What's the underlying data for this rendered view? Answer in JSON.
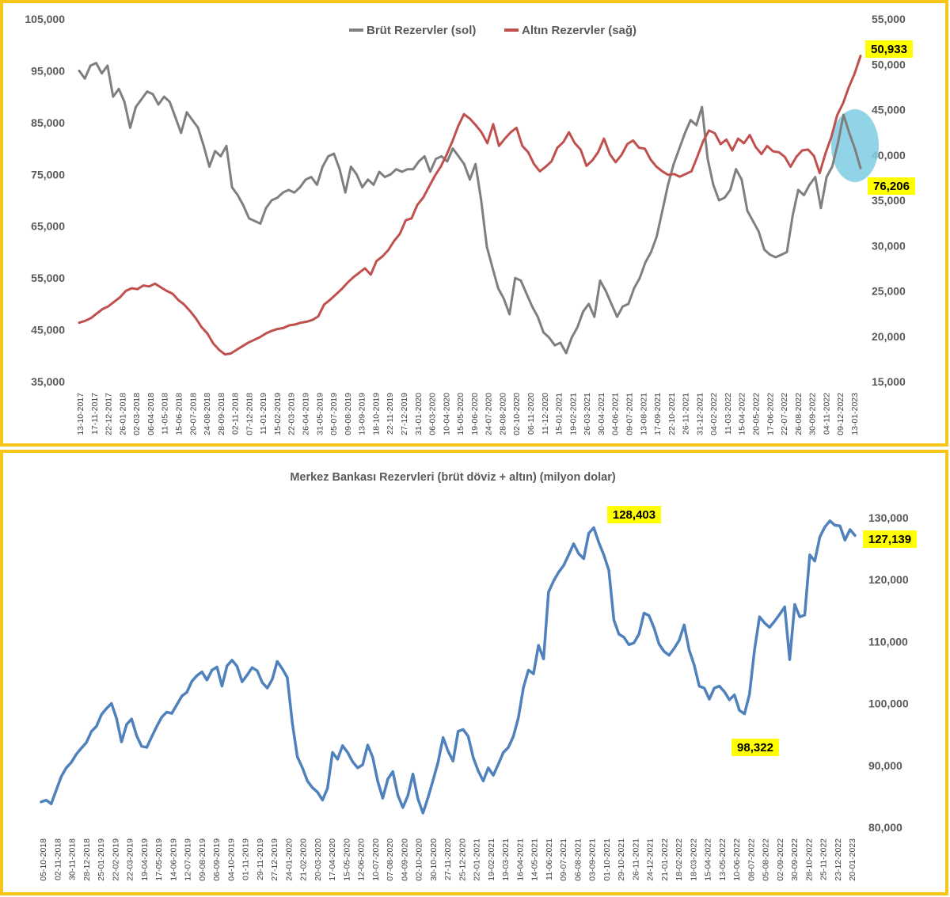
{
  "chart_data": [
    {
      "type": "line",
      "title": "",
      "legend": {
        "placement": "top-center",
        "entries": [
          "Brüt Rezervler (sol)",
          "Altın Rezervler (sağ)"
        ]
      },
      "grid": false,
      "y_left": {
        "ylim": [
          35000,
          105000
        ],
        "ticks": [
          "35,000",
          "45,000",
          "55,000",
          "65,000",
          "75,000",
          "85,000",
          "95,000",
          "105,000"
        ]
      },
      "y_right": {
        "ylim": [
          15000,
          55000
        ],
        "ticks": [
          "15,000",
          "20,000",
          "25,000",
          "30,000",
          "35,000",
          "40,000",
          "45,000",
          "50,000",
          "55,000"
        ]
      },
      "x_ticks": [
        "13-10-2017",
        "17-11-2017",
        "22-12-2017",
        "26-01-2018",
        "02-03-2018",
        "06-04-2018",
        "11-05-2018",
        "15-06-2018",
        "20-07-2018",
        "24-08-2018",
        "28-09-2018",
        "02-11-2018",
        "07-12-2018",
        "11-01-2019",
        "15-02-2019",
        "22-03-2019",
        "26-04-2019",
        "31-05-2019",
        "05-07-2019",
        "09-08-2019",
        "13-09-2019",
        "18-10-2019",
        "22-11-2019",
        "27-12-2019",
        "31-01-2020",
        "06-03-2020",
        "10-04-2020",
        "15-05-2020",
        "19-06-2020",
        "24-07-2020",
        "28-08-2020",
        "02-10-2020",
        "06-11-2020",
        "11-12-2020",
        "15-01-2021",
        "19-02-2021",
        "26-03-2021",
        "30-04-2021",
        "04-06-2021",
        "09-07-2021",
        "13-08-2021",
        "17-09-2021",
        "22-10-2021",
        "26-11-2021",
        "31-12-2021",
        "04-02-2022",
        "11-03-2022",
        "15-04-2022",
        "20-05-2022",
        "17-06-2022",
        "22-07-2022",
        "26-08-2022",
        "30-09-2022",
        "04-11-2022",
        "09-12-2022",
        "13-01-2023"
      ],
      "series": [
        {
          "name": "Brüt Rezervler (sol)",
          "axis": "left",
          "color": "#7f7f7f",
          "values": [
            95000,
            93500,
            96000,
            96500,
            94500,
            96000,
            90000,
            91500,
            89000,
            84000,
            88000,
            89500,
            91000,
            90500,
            88500,
            90000,
            89000,
            86000,
            83000,
            87000,
            85500,
            84000,
            80500,
            76500,
            79500,
            78500,
            80500,
            72500,
            71000,
            69000,
            66500,
            66000,
            65500,
            68500,
            70000,
            70500,
            71500,
            72000,
            71500,
            72500,
            74000,
            74500,
            73000,
            76500,
            78500,
            79000,
            76000,
            71500,
            76500,
            75000,
            72500,
            74000,
            73000,
            75500,
            74500,
            75000,
            76000,
            75500,
            76000,
            76000,
            77500,
            78500,
            75500,
            78000,
            78500,
            77500,
            80000,
            78500,
            77000,
            74000,
            77000,
            70000,
            61000,
            57000,
            53000,
            51000,
            48000,
            55000,
            54500,
            52000,
            49500,
            47500,
            44500,
            43500,
            42000,
            42500,
            40500,
            43500,
            45500,
            48500,
            50000,
            47500,
            54500,
            52500,
            50000,
            47500,
            49500,
            50000,
            53000,
            55000,
            58000,
            60000,
            63000,
            68000,
            73000,
            77000,
            80000,
            83000,
            85500,
            84500,
            88000,
            78000,
            73000,
            70000,
            70500,
            72000,
            76000,
            74000,
            68000,
            66000,
            64000,
            60500,
            59500,
            59000,
            59500,
            60000,
            67000,
            72000,
            71000,
            73000,
            74500,
            68500,
            74500,
            76500,
            81000,
            86500,
            83000,
            80000,
            76206
          ]
        },
        {
          "name": "Altın Rezervler (sağ)",
          "axis": "right",
          "color": "#c0504d",
          "values": [
            21500,
            21700,
            22000,
            22500,
            23000,
            23300,
            23800,
            24300,
            25000,
            25300,
            25200,
            25600,
            25500,
            25800,
            25400,
            25000,
            24700,
            24000,
            23500,
            22800,
            22000,
            21000,
            20300,
            19200,
            18500,
            18000,
            18100,
            18500,
            18900,
            19300,
            19600,
            19900,
            20300,
            20600,
            20800,
            20900,
            21200,
            21300,
            21500,
            21600,
            21800,
            22200,
            23500,
            24000,
            24600,
            25200,
            25900,
            26500,
            27000,
            27500,
            26800,
            28300,
            28800,
            29500,
            30500,
            31300,
            32800,
            33000,
            34500,
            35300,
            36500,
            37700,
            38700,
            40000,
            41500,
            43200,
            44500,
            44000,
            43300,
            42500,
            41300,
            43400,
            41000,
            41800,
            42500,
            43000,
            41000,
            40300,
            39000,
            38200,
            38700,
            39300,
            40800,
            41400,
            42500,
            41300,
            40600,
            38800,
            39400,
            40300,
            41800,
            40100,
            39200,
            40000,
            41200,
            41600,
            40800,
            40700,
            39500,
            38700,
            38200,
            37800,
            37900,
            37600,
            37900,
            38200,
            39800,
            41500,
            42700,
            42400,
            41200,
            41700,
            40500,
            41800,
            41300,
            42200,
            40900,
            40100,
            41000,
            40400,
            40300,
            39800,
            38700,
            39800,
            40500,
            40600,
            39900,
            38000,
            40200,
            42000,
            44400,
            45700,
            47500,
            49000,
            50933
          ]
        }
      ],
      "annotations": {
        "right_end_gold": "50,933",
        "right_end_gross": "76,206"
      }
    },
    {
      "type": "line",
      "title": "Merkez Bankası Rezervleri (brüt döviz + altın) (milyon dolar)",
      "grid": false,
      "y_right": {
        "ylim": [
          80000,
          130000
        ],
        "ticks": [
          "80,000",
          "90,000",
          "100,000",
          "110,000",
          "120,000",
          "130,000"
        ]
      },
      "x_ticks": [
        "05-10-2018",
        "02-11-2018",
        "30-11-2018",
        "28-12-2018",
        "25-01-2019",
        "22-02-2019",
        "22-03-2019",
        "19-04-2019",
        "17-05-2019",
        "14-06-2019",
        "12-07-2019",
        "09-08-2019",
        "06-09-2019",
        "04-10-2019",
        "01-11-2019",
        "29-11-2019",
        "27-12-2019",
        "24-01-2020",
        "21-02-2020",
        "20-03-2020",
        "17-04-2020",
        "15-05-2020",
        "12-06-2020",
        "10-07-2020",
        "07-08-2020",
        "04-09-2020",
        "02-10-2020",
        "30-10-2020",
        "27-11-2020",
        "25-12-2020",
        "22-01-2021",
        "19-02-2021",
        "19-03-2021",
        "16-04-2021",
        "14-05-2021",
        "11-06-2021",
        "09-07-2021",
        "06-08-2021",
        "03-09-2021",
        "01-10-2021",
        "29-10-2021",
        "26-11-2021",
        "24-12-2021",
        "21-01-2022",
        "18-02-2022",
        "18-03-2022",
        "15-04-2022",
        "13-05-2022",
        "10-06-2022",
        "08-07-2022",
        "05-08-2022",
        "02-09-2022",
        "30-09-2022",
        "28-10-2022",
        "25-11-2022",
        "23-12-2022",
        "20-01-2023"
      ],
      "series": [
        {
          "name": "",
          "color": "#4f81bd",
          "values": [
            84100,
            84400,
            83800,
            86000,
            88200,
            89600,
            90500,
            91800,
            92800,
            93700,
            95500,
            96300,
            98200,
            99200,
            100000,
            97600,
            93800,
            96600,
            97500,
            94800,
            93100,
            92900,
            94600,
            96300,
            97800,
            98600,
            98400,
            99800,
            101200,
            101800,
            103600,
            104500,
            105100,
            103800,
            105400,
            105900,
            102800,
            106100,
            107000,
            106000,
            103500,
            104600,
            105800,
            105300,
            103400,
            102500,
            103900,
            106800,
            105600,
            104200,
            96800,
            91400,
            89600,
            87500,
            86400,
            85700,
            84400,
            86300,
            92100,
            91000,
            93200,
            92100,
            90600,
            89600,
            90100,
            93300,
            91300,
            87400,
            84700,
            87800,
            89000,
            85200,
            83200,
            85100,
            88600,
            84600,
            82300,
            84800,
            87600,
            90500,
            94500,
            92300,
            90700,
            95500,
            95800,
            94700,
            91300,
            89100,
            87500,
            89600,
            88400,
            90200,
            92100,
            92900,
            94700,
            97700,
            102600,
            105400,
            104800,
            109400,
            107200,
            118000,
            119800,
            121200,
            122300,
            124000,
            125800,
            124200,
            123400,
            127500,
            128403,
            126000,
            124000,
            121500,
            113500,
            111200,
            110700,
            109500,
            109800,
            111200,
            114600,
            114200,
            112200,
            109600,
            108400,
            107800,
            108900,
            110200,
            112700,
            108600,
            106200,
            102800,
            102500,
            100700,
            102500,
            102800,
            101900,
            100600,
            101400,
            98900,
            98322,
            101500,
            108700,
            114000,
            113000,
            112300,
            113300,
            114400,
            115600,
            107100,
            116000,
            114000,
            114300,
            124000,
            123000,
            126900,
            128500,
            129500,
            128800,
            128700,
            126400,
            128100,
            127139
          ]
        }
      ],
      "annotations": {
        "peak": "128,403",
        "trough": "98,322",
        "last": "127,139"
      }
    }
  ]
}
